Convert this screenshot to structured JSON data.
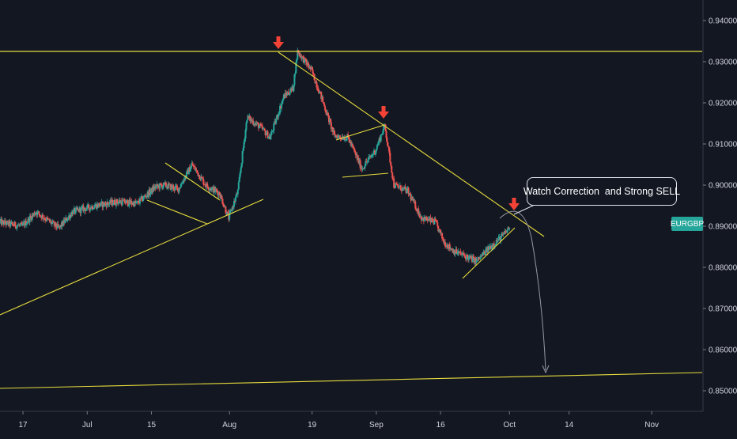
{
  "chart_data": {
    "type": "candlestick",
    "symbol": "EURGBP",
    "y_axis": {
      "range": [
        0.845,
        0.945
      ],
      "ticks": [
        "0.94000",
        "0.93000",
        "0.92000",
        "0.91000",
        "0.90000",
        "0.89000",
        "0.88000",
        "0.87000",
        "0.86000",
        "0.85000"
      ]
    },
    "x_axis": {
      "range": [
        "2019-06-12",
        "2019-11-12"
      ],
      "ticks": [
        {
          "label": "17",
          "date": "2019-06-17"
        },
        {
          "label": "Jul",
          "date": "2019-07-01"
        },
        {
          "label": "15",
          "date": "2019-07-15"
        },
        {
          "label": "Aug",
          "date": "2019-08-01"
        },
        {
          "label": "19",
          "date": "2019-08-19"
        },
        {
          "label": "Sep",
          "date": "2019-09-02"
        },
        {
          "label": "16",
          "date": "2019-09-16"
        },
        {
          "label": "Oct",
          "date": "2019-10-01"
        },
        {
          "label": "14",
          "date": "2019-10-14"
        },
        {
          "label": "Nov",
          "date": "2019-11-01"
        }
      ]
    },
    "price_path": [
      [
        "2019-06-12",
        0.891
      ],
      [
        "2019-06-17",
        0.89
      ],
      [
        "2019-06-20",
        0.8935
      ],
      [
        "2019-06-25",
        0.8895
      ],
      [
        "2019-06-28",
        0.8935
      ],
      [
        "2019-07-03",
        0.895
      ],
      [
        "2019-07-08",
        0.896
      ],
      [
        "2019-07-12",
        0.8955
      ],
      [
        "2019-07-16",
        0.8995
      ],
      [
        "2019-07-18",
        0.9
      ],
      [
        "2019-07-21",
        0.899
      ],
      [
        "2019-07-24",
        0.905
      ],
      [
        "2019-07-27",
        0.9
      ],
      [
        "2019-07-30",
        0.898
      ],
      [
        "2019-08-01",
        0.892
      ],
      [
        "2019-08-03",
        0.8985
      ],
      [
        "2019-08-05",
        0.9165
      ],
      [
        "2019-08-08",
        0.914
      ],
      [
        "2019-08-10",
        0.9115
      ],
      [
        "2019-08-13",
        0.9215
      ],
      [
        "2019-08-15",
        0.9235
      ],
      [
        "2019-08-16",
        0.9325
      ],
      [
        "2019-08-19",
        0.928
      ],
      [
        "2019-08-21",
        0.922
      ],
      [
        "2019-08-24",
        0.912
      ],
      [
        "2019-08-27",
        0.9115
      ],
      [
        "2019-08-30",
        0.904
      ],
      [
        "2019-09-02",
        0.9085
      ],
      [
        "2019-09-04",
        0.9145
      ],
      [
        "2019-09-06",
        0.9
      ],
      [
        "2019-09-09",
        0.8985
      ],
      [
        "2019-09-12",
        0.892
      ],
      [
        "2019-09-15",
        0.891
      ],
      [
        "2019-09-17",
        0.886
      ],
      [
        "2019-09-19",
        0.884
      ],
      [
        "2019-09-21",
        0.883
      ],
      [
        "2019-09-24",
        0.8815
      ],
      [
        "2019-09-27",
        0.885
      ],
      [
        "2019-09-30",
        0.888
      ],
      [
        "2019-10-01",
        0.8895
      ]
    ],
    "annotations": {
      "callout_text": "Watch Correction  and Strong SELL",
      "symbol_label": "EURGBP",
      "marker_color": "#f44336",
      "trendline_color": "#ffeb3b",
      "projection_color": "#9598a1",
      "up_color": "#26a69a",
      "down_color": "#ef5350",
      "background": "#131722"
    }
  }
}
